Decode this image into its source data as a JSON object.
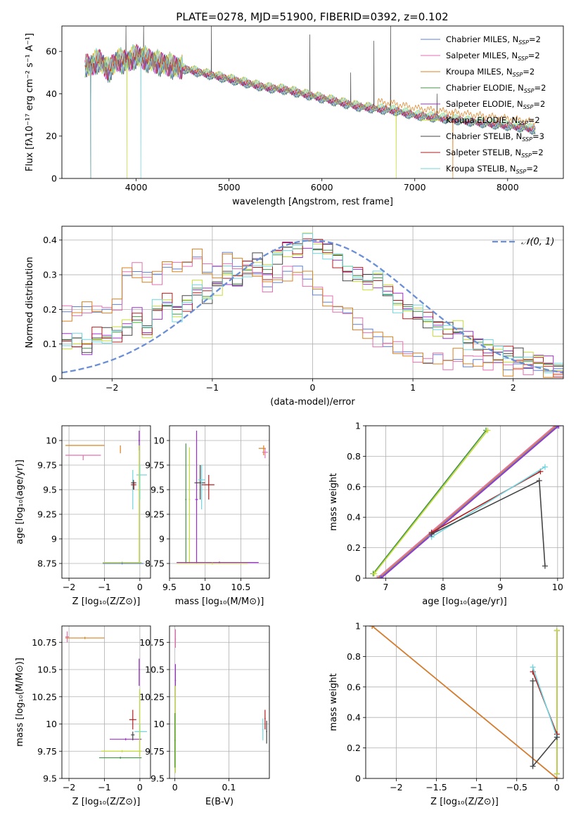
{
  "figure": {
    "title": "PLATE=0278, MJD=51900, FIBERID=0392, z=0.102"
  },
  "series": [
    {
      "name": "Chabrier MILES",
      "nssp": "2",
      "color": "#5b7fd6"
    },
    {
      "name": "Salpeter MILES",
      "nssp": "2",
      "color": "#e46fb0"
    },
    {
      "name": "Kroupa MILES",
      "nssp": "2",
      "color": "#d9801f"
    },
    {
      "name": "Chabrier ELODIE",
      "nssp": "2",
      "color": "#44924a"
    },
    {
      "name": "Salpeter ELODIE",
      "nssp": "2",
      "color": "#9b30c8"
    },
    {
      "name": "Kroupa ELODIE",
      "nssp": "2",
      "color": "#c6dc3a"
    },
    {
      "name": "Chabrier STELIB",
      "nssp": "3",
      "color": "#454545"
    },
    {
      "name": "Salpeter STELIB",
      "nssp": "2",
      "color": "#b21e1e"
    },
    {
      "name": "Kroupa STELIB",
      "nssp": "2",
      "color": "#6fd6df"
    }
  ],
  "chart_data": [
    {
      "id": "spectrum",
      "type": "line",
      "xlabel": "wavelength [Angstrom, rest frame]",
      "ylabel": "Flux [fλ10⁻¹⁷ erg cm⁻² s⁻¹ A⁻¹]",
      "xlim": [
        3200,
        8600
      ],
      "ylim": [
        0,
        72
      ],
      "xticks": [
        4000,
        5000,
        6000,
        7000,
        8000
      ],
      "yticks": [
        0,
        20,
        40,
        60
      ],
      "grid": false,
      "legend": "top-right",
      "anchors": {
        "x": [
          3450,
          3500,
          3600,
          3700,
          3800,
          3900,
          4000,
          4200,
          4400,
          4600,
          4800,
          5000,
          5200,
          5400,
          5600,
          5800,
          6000,
          6200,
          6400,
          6600,
          6800,
          7000,
          7200,
          7400,
          7600,
          7800,
          8000,
          8200,
          8300
        ],
        "y": [
          54,
          53,
          56,
          51,
          56,
          55,
          58,
          55,
          53,
          51,
          49,
          47,
          45,
          43,
          42,
          40,
          38,
          36,
          34,
          33,
          32,
          30,
          29,
          28,
          27,
          26,
          25,
          24,
          23
        ]
      },
      "dips": [
        {
          "series": [
            0,
            1,
            2,
            7,
            8
          ],
          "x": 3510,
          "y": 0
        },
        {
          "series": [
            5
          ],
          "x": 3900,
          "y": 0
        },
        {
          "series": [
            8
          ],
          "x": 4050,
          "y": 0
        },
        {
          "series": [
            5
          ],
          "x": 6800,
          "y": 0
        },
        {
          "series": [
            2
          ],
          "x": 7410,
          "y": 0
        }
      ],
      "spikes": [
        {
          "x": 3890,
          "y": 72
        },
        {
          "x": 4080,
          "y": 72
        },
        {
          "x": 4810,
          "y": 72
        },
        {
          "x": 5870,
          "y": 68
        },
        {
          "x": 6310,
          "y": 50
        },
        {
          "x": 6560,
          "y": 65
        },
        {
          "x": 6740,
          "y": 72
        },
        {
          "x": 7240,
          "y": 40
        }
      ]
    },
    {
      "id": "residuals",
      "type": "line",
      "xlabel": "(data-model)/error",
      "ylabel": "Normed distribution",
      "xlim": [
        -2.5,
        2.5
      ],
      "ylim": [
        0,
        0.44
      ],
      "xticks": [
        -2,
        -1,
        0,
        1,
        2
      ],
      "yticks": [
        0.0,
        0.1,
        0.2,
        0.3,
        0.4
      ],
      "grid": true,
      "legend": "top-right",
      "gaussian": {
        "label": "𝒩(0, 1)",
        "mu": 0,
        "sigma": 1,
        "color": "#6a8fd6"
      },
      "group_a": {
        "series": [
          0,
          1,
          2
        ],
        "bin_edges_from": -2.5,
        "bin_width": 0.1,
        "values": [
          0.19,
          0.2,
          0.21,
          0.2,
          0.2,
          0.21,
          0.3,
          0.31,
          0.3,
          0.3,
          0.33,
          0.32,
          0.33,
          0.35,
          0.31,
          0.32,
          0.36,
          0.33,
          0.31,
          0.3,
          0.26,
          0.28,
          0.31,
          0.32,
          0.29,
          0.25,
          0.22,
          0.2,
          0.19,
          0.16,
          0.14,
          0.12,
          0.1,
          0.08,
          0.07,
          0.06,
          0.05,
          0.07,
          0.05,
          0.06,
          0.04,
          0.05,
          0.04,
          0.05,
          0.03,
          0.04,
          0.03,
          0.03,
          0.02,
          0.02
        ]
      },
      "group_b": {
        "series": [
          3,
          4,
          5,
          6,
          7,
          8
        ],
        "bin_edges_from": -2.5,
        "bin_width": 0.1,
        "values": [
          0.11,
          0.11,
          0.09,
          0.12,
          0.12,
          0.13,
          0.15,
          0.18,
          0.14,
          0.2,
          0.22,
          0.19,
          0.22,
          0.26,
          0.24,
          0.27,
          0.3,
          0.28,
          0.32,
          0.34,
          0.31,
          0.36,
          0.38,
          0.37,
          0.4,
          0.38,
          0.37,
          0.35,
          0.31,
          0.3,
          0.28,
          0.29,
          0.25,
          0.22,
          0.2,
          0.19,
          0.17,
          0.15,
          0.14,
          0.14,
          0.11,
          0.1,
          0.09,
          0.08,
          0.07,
          0.06,
          0.05,
          0.05,
          0.04,
          0.03
        ]
      }
    },
    {
      "id": "age-vs-z",
      "type": "scatter",
      "xlabel": "Z [log₁₀(Z/Z⊙)]",
      "ylabel": "age  [log₁₀(age/yr)]",
      "xlim": [
        -2.2,
        0.3
      ],
      "ylim": [
        8.6,
        10.15
      ],
      "xticks": [
        -2,
        -1,
        0
      ],
      "yticks": [
        8.75,
        9.0,
        9.25,
        9.5,
        9.75,
        10.0
      ],
      "grid": true,
      "errorbars": [
        {
          "s": 2,
          "x": -0.55,
          "y": 9.95,
          "xlo": -2.1,
          "xhi": -1.0,
          "ylo": 9.87,
          "yhi": 9.95
        },
        {
          "s": 1,
          "x": -1.6,
          "y": 9.85,
          "xlo": -2.1,
          "xhi": -1.1,
          "ylo": 9.8,
          "yhi": 9.85
        },
        {
          "s": 4,
          "x": -0.02,
          "y": 10.0,
          "xlo": -0.04,
          "xhi": 0.0,
          "ylo": 9.9,
          "yhi": 10.1
        },
        {
          "s": 8,
          "x": -0.2,
          "y": 9.55,
          "xlo": -0.25,
          "xhi": -0.1,
          "ylo": 9.3,
          "yhi": 9.7
        },
        {
          "s": 8,
          "x": 0.0,
          "y": 9.65,
          "xlo": -0.1,
          "xhi": 0.2,
          "ylo": 9.4,
          "yhi": 9.75
        },
        {
          "s": 6,
          "x": -0.18,
          "y": 9.57,
          "xlo": -0.25,
          "xhi": -0.1,
          "ylo": 9.5,
          "yhi": 9.6
        },
        {
          "s": 7,
          "x": -0.17,
          "y": 9.55,
          "xlo": -0.25,
          "xhi": -0.1,
          "ylo": 9.5,
          "yhi": 9.58
        },
        {
          "s": 5,
          "x": -0.02,
          "y": 9.5,
          "xlo": -0.05,
          "xhi": 0.0,
          "ylo": 8.75,
          "yhi": 9.95
        },
        {
          "s": 5,
          "x": -0.5,
          "y": 8.76,
          "xlo": -1.05,
          "xhi": 0.05,
          "ylo": 8.75,
          "yhi": 8.77
        },
        {
          "s": 0,
          "x": -0.5,
          "y": 8.75,
          "xlo": -1.05,
          "xhi": 0.1,
          "ylo": 8.74,
          "yhi": 8.76
        }
      ]
    },
    {
      "id": "age-vs-mass",
      "type": "scatter",
      "xlabel": "mass [log₁₀(M/M⊙)]",
      "ylabel": "",
      "xlim": [
        9.5,
        10.9
      ],
      "ylim": [
        8.6,
        10.15
      ],
      "xticks": [
        9.5,
        10.0,
        10.5
      ],
      "yticks": [
        8.75,
        9.0,
        9.25,
        9.5,
        9.75,
        10.0
      ],
      "grid": true,
      "errorbars": [
        {
          "s": 2,
          "x": 10.82,
          "y": 9.92,
          "xlo": 10.75,
          "xhi": 10.85,
          "ylo": 9.85,
          "yhi": 9.95
        },
        {
          "s": 1,
          "x": 10.84,
          "y": 9.88,
          "xlo": 10.8,
          "xhi": 10.88,
          "ylo": 9.82,
          "yhi": 9.92
        },
        {
          "s": 4,
          "x": 9.88,
          "y": 9.4,
          "xlo": 9.86,
          "xhi": 9.9,
          "ylo": 8.75,
          "yhi": 10.1
        },
        {
          "s": 3,
          "x": 9.73,
          "y": 9.4,
          "xlo": 9.72,
          "xhi": 9.74,
          "ylo": 8.75,
          "yhi": 9.97
        },
        {
          "s": 5,
          "x": 9.78,
          "y": 9.4,
          "xlo": 9.77,
          "xhi": 9.79,
          "ylo": 8.75,
          "yhi": 9.93
        },
        {
          "s": 6,
          "x": 9.93,
          "y": 9.57,
          "xlo": 9.85,
          "xhi": 10.0,
          "ylo": 9.4,
          "yhi": 9.75
        },
        {
          "s": 8,
          "x": 9.95,
          "y": 9.6,
          "xlo": 9.9,
          "xhi": 10.0,
          "ylo": 9.3,
          "yhi": 9.75
        },
        {
          "s": 7,
          "x": 10.05,
          "y": 9.55,
          "xlo": 9.95,
          "xhi": 10.13,
          "ylo": 9.4,
          "yhi": 9.65
        },
        {
          "s": 4,
          "x": 10.2,
          "y": 8.76,
          "xlo": 9.6,
          "xhi": 10.75,
          "ylo": 8.75,
          "yhi": 8.77
        },
        {
          "s": 5,
          "x": 10.1,
          "y": 8.75,
          "xlo": 9.6,
          "xhi": 10.6,
          "ylo": 8.74,
          "yhi": 8.76
        }
      ]
    },
    {
      "id": "weight-vs-age",
      "type": "line",
      "xlabel": "age  [log₁₀(age/yr)]",
      "ylabel": "mass weight",
      "xlim": [
        6.65,
        10.1
      ],
      "ylim": [
        0,
        1.0
      ],
      "xticks": [
        7,
        8,
        9,
        10
      ],
      "yticks": [
        0.0,
        0.2,
        0.4,
        0.6,
        0.8,
        1.0
      ],
      "grid": true,
      "lines": [
        {
          "s": 3,
          "x": [
            6.78,
            8.75
          ],
          "y": [
            0.03,
            0.97
          ]
        },
        {
          "s": 5,
          "x": [
            6.8,
            8.78
          ],
          "y": [
            0.03,
            0.97
          ]
        },
        {
          "s": 1,
          "x": [
            6.85,
            9.95
          ],
          "y": [
            0.0,
            1.0
          ]
        },
        {
          "s": 2,
          "x": [
            6.88,
            9.98
          ],
          "y": [
            0.0,
            1.0
          ]
        },
        {
          "s": 0,
          "x": [
            6.9,
            10.0
          ],
          "y": [
            0.0,
            1.0
          ]
        },
        {
          "s": 4,
          "x": [
            6.92,
            10.02
          ],
          "y": [
            0.0,
            1.0
          ]
        },
        {
          "s": 7,
          "x": [
            7.8,
            9.7
          ],
          "y": [
            0.3,
            0.7
          ]
        },
        {
          "s": 8,
          "x": [
            7.8,
            9.78
          ],
          "y": [
            0.27,
            0.73
          ]
        },
        {
          "s": 6,
          "x": [
            7.8,
            9.68,
            9.78
          ],
          "y": [
            0.29,
            0.64,
            0.08
          ]
        }
      ]
    },
    {
      "id": "mass-vs-z",
      "type": "scatter",
      "xlabel": "Z [log₁₀(Z/Z⊙)]",
      "ylabel": "mass [log₁₀(M/M⊙)]",
      "xlim": [
        -2.2,
        0.3
      ],
      "ylim": [
        9.5,
        10.9
      ],
      "xticks": [
        -2,
        -1,
        0
      ],
      "yticks": [
        9.5,
        9.75,
        10.0,
        10.25,
        10.5,
        10.75
      ],
      "grid": true,
      "errorbars": [
        {
          "s": 1,
          "x": -2.05,
          "y": 10.8,
          "xlo": -2.1,
          "xhi": -2.0,
          "ylo": 10.75,
          "yhi": 10.85
        },
        {
          "s": 2,
          "x": -1.55,
          "y": 10.79,
          "xlo": -2.1,
          "xhi": -1.0,
          "ylo": 10.78,
          "yhi": 10.8
        },
        {
          "s": 4,
          "x": -0.02,
          "y": 10.5,
          "xlo": -0.03,
          "xhi": 0.0,
          "ylo": 10.35,
          "yhi": 10.6
        },
        {
          "s": 7,
          "x": -0.2,
          "y": 10.04,
          "xlo": -0.3,
          "xhi": -0.1,
          "ylo": 9.95,
          "yhi": 10.13
        },
        {
          "s": 8,
          "x": 0.0,
          "y": 9.93,
          "xlo": -0.15,
          "xhi": 0.2,
          "ylo": 9.85,
          "yhi": 10.0
        },
        {
          "s": 4,
          "x": -0.4,
          "y": 9.86,
          "xlo": -0.85,
          "xhi": 0.05,
          "ylo": 9.85,
          "yhi": 9.87
        },
        {
          "s": 6,
          "x": -0.2,
          "y": 9.9,
          "xlo": -0.25,
          "xhi": -0.15,
          "ylo": 9.85,
          "yhi": 9.93
        },
        {
          "s": 5,
          "x": -0.01,
          "y": 10.0,
          "xlo": -0.02,
          "xhi": 0.0,
          "ylo": 9.7,
          "yhi": 10.32
        },
        {
          "s": 5,
          "x": -0.5,
          "y": 9.75,
          "xlo": -1.1,
          "xhi": 0.05,
          "ylo": 9.74,
          "yhi": 9.76
        },
        {
          "s": 3,
          "x": -0.55,
          "y": 9.69,
          "xlo": -1.15,
          "xhi": 0.05,
          "ylo": 9.68,
          "yhi": 9.7
        }
      ]
    },
    {
      "id": "mass-vs-ebv",
      "type": "scatter",
      "xlabel": "E(B-V)",
      "ylabel": "",
      "xlim": [
        -0.01,
        0.175
      ],
      "ylim": [
        9.5,
        10.9
      ],
      "xticks": [
        0.0,
        0.1
      ],
      "yticks": [
        9.5,
        9.75,
        10.0,
        10.25,
        10.5,
        10.75
      ],
      "grid": true,
      "errorbars": [
        {
          "s": 1,
          "x": 0.001,
          "y": 10.78,
          "xlo": 0.0,
          "xhi": 0.002,
          "ylo": 10.7,
          "yhi": 10.87
        },
        {
          "s": 4,
          "x": 0.001,
          "y": 10.4,
          "xlo": 0.0,
          "xhi": 0.002,
          "ylo": 10.25,
          "yhi": 10.55
        },
        {
          "s": 5,
          "x": 0.001,
          "y": 9.9,
          "xlo": 0.0,
          "xhi": 0.002,
          "ylo": 9.55,
          "yhi": 10.35
        },
        {
          "s": 3,
          "x": 0.0,
          "y": 9.85,
          "xlo": -0.001,
          "xhi": 0.001,
          "ylo": 9.6,
          "yhi": 10.1
        },
        {
          "s": 8,
          "x": 0.163,
          "y": 9.95,
          "xlo": 0.162,
          "xhi": 0.164,
          "ylo": 9.85,
          "yhi": 10.05
        },
        {
          "s": 7,
          "x": 0.167,
          "y": 10.05,
          "xlo": 0.166,
          "xhi": 0.168,
          "ylo": 9.95,
          "yhi": 10.13
        },
        {
          "s": 6,
          "x": 0.17,
          "y": 9.93,
          "xlo": 0.169,
          "xhi": 0.171,
          "ylo": 9.82,
          "yhi": 10.03
        }
      ]
    },
    {
      "id": "weight-vs-z",
      "type": "line",
      "xlabel": "Z [log₁₀(Z/Z⊙)]",
      "ylabel": "mass weight",
      "xlim": [
        -2.38,
        0.08
      ],
      "ylim": [
        0,
        1.0
      ],
      "xticks": [
        -2.0,
        -1.5,
        -1.0,
        -0.5,
        0.0
      ],
      "yticks": [
        0.0,
        0.2,
        0.4,
        0.6,
        0.8,
        1.0
      ],
      "grid": true,
      "lines": [
        {
          "s": 0,
          "x": [
            -2.3,
            0.0
          ],
          "y": [
            1.0,
            0.0
          ]
        },
        {
          "s": 1,
          "x": [
            -2.3,
            0.0
          ],
          "y": [
            1.0,
            0.0
          ]
        },
        {
          "s": 2,
          "x": [
            -2.3,
            0.0
          ],
          "y": [
            1.0,
            0.0
          ]
        },
        {
          "s": 3,
          "x": [
            0.0,
            0.0
          ],
          "y": [
            0.03,
            0.97
          ]
        },
        {
          "s": 4,
          "x": [
            0.0,
            0.0
          ],
          "y": [
            0.03,
            0.97
          ]
        },
        {
          "s": 5,
          "x": [
            0.0,
            0.0
          ],
          "y": [
            0.03,
            0.97
          ]
        },
        {
          "s": 7,
          "x": [
            -0.3,
            0.0
          ],
          "y": [
            0.7,
            0.29
          ]
        },
        {
          "s": 8,
          "x": [
            -0.3,
            0.0
          ],
          "y": [
            0.73,
            0.27
          ]
        },
        {
          "s": 6,
          "x": [
            -0.3,
            -0.3,
            0.0
          ],
          "y": [
            0.64,
            0.08,
            0.27
          ]
        }
      ]
    }
  ]
}
